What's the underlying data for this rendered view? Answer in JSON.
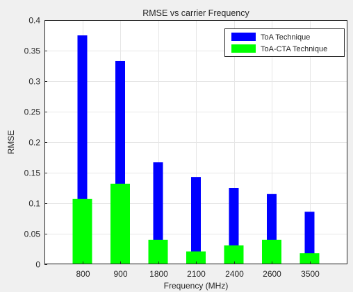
{
  "chart_data": {
    "type": "bar",
    "title": "RMSE vs carrier Frequency",
    "xlabel": "Frequency (MHz)",
    "ylabel": "RMSE",
    "categories": [
      "800",
      "900",
      "1800",
      "2100",
      "2400",
      "2600",
      "3500"
    ],
    "series": [
      {
        "name": "ToA Technique",
        "color": "#0000ff",
        "values": [
          0.375,
          0.333,
          0.167,
          0.143,
          0.125,
          0.115,
          0.086
        ]
      },
      {
        "name": "ToA-CTA Technique",
        "color": "#00ff00",
        "values": [
          0.107,
          0.132,
          0.04,
          0.021,
          0.031,
          0.04,
          0.018
        ]
      }
    ],
    "ylim": [
      0,
      0.4
    ],
    "yticks": [
      0,
      0.05,
      0.1,
      0.15,
      0.2,
      0.25,
      0.3,
      0.35,
      0.4
    ],
    "ytick_labels": [
      "0",
      "0.05",
      "0.1",
      "0.15",
      "0.2",
      "0.25",
      "0.3",
      "0.35",
      "0.4"
    ],
    "grid": true,
    "legend_position": "top-right",
    "colors": {
      "figure_background": "#f0f0f0",
      "axes_background": "#ffffff",
      "grid": "#e6e6e6"
    }
  }
}
